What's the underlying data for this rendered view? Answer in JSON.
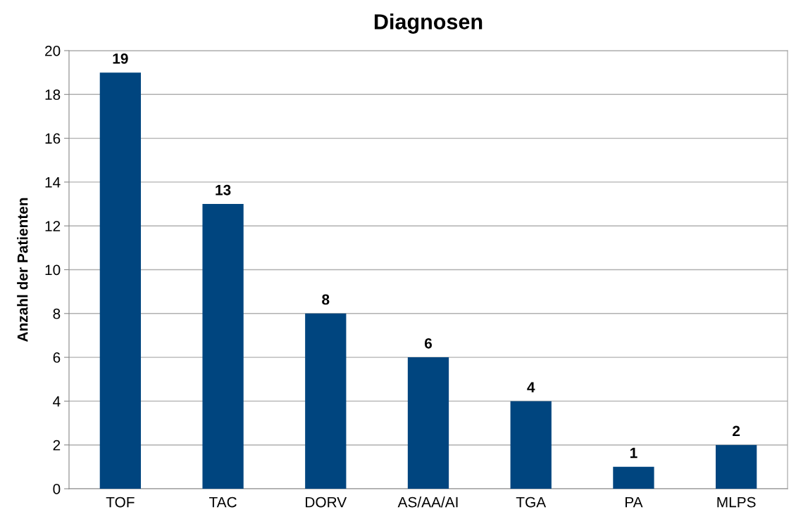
{
  "chart_data": {
    "type": "bar",
    "title": "Diagnosen",
    "ylabel": "Anzahl der Patienten",
    "categories": [
      "TOF",
      "TAC",
      "DORV",
      "AS/AA/AI",
      "TGA",
      "PA",
      "MLPS"
    ],
    "values": [
      19,
      13,
      8,
      6,
      4,
      1,
      2
    ],
    "color": "#00457f",
    "ylim": [
      0,
      20
    ],
    "yticks": [
      0,
      2,
      4,
      6,
      8,
      10,
      12,
      14,
      16,
      18,
      20
    ],
    "grid": "y",
    "data_labels": true,
    "legend": false
  }
}
